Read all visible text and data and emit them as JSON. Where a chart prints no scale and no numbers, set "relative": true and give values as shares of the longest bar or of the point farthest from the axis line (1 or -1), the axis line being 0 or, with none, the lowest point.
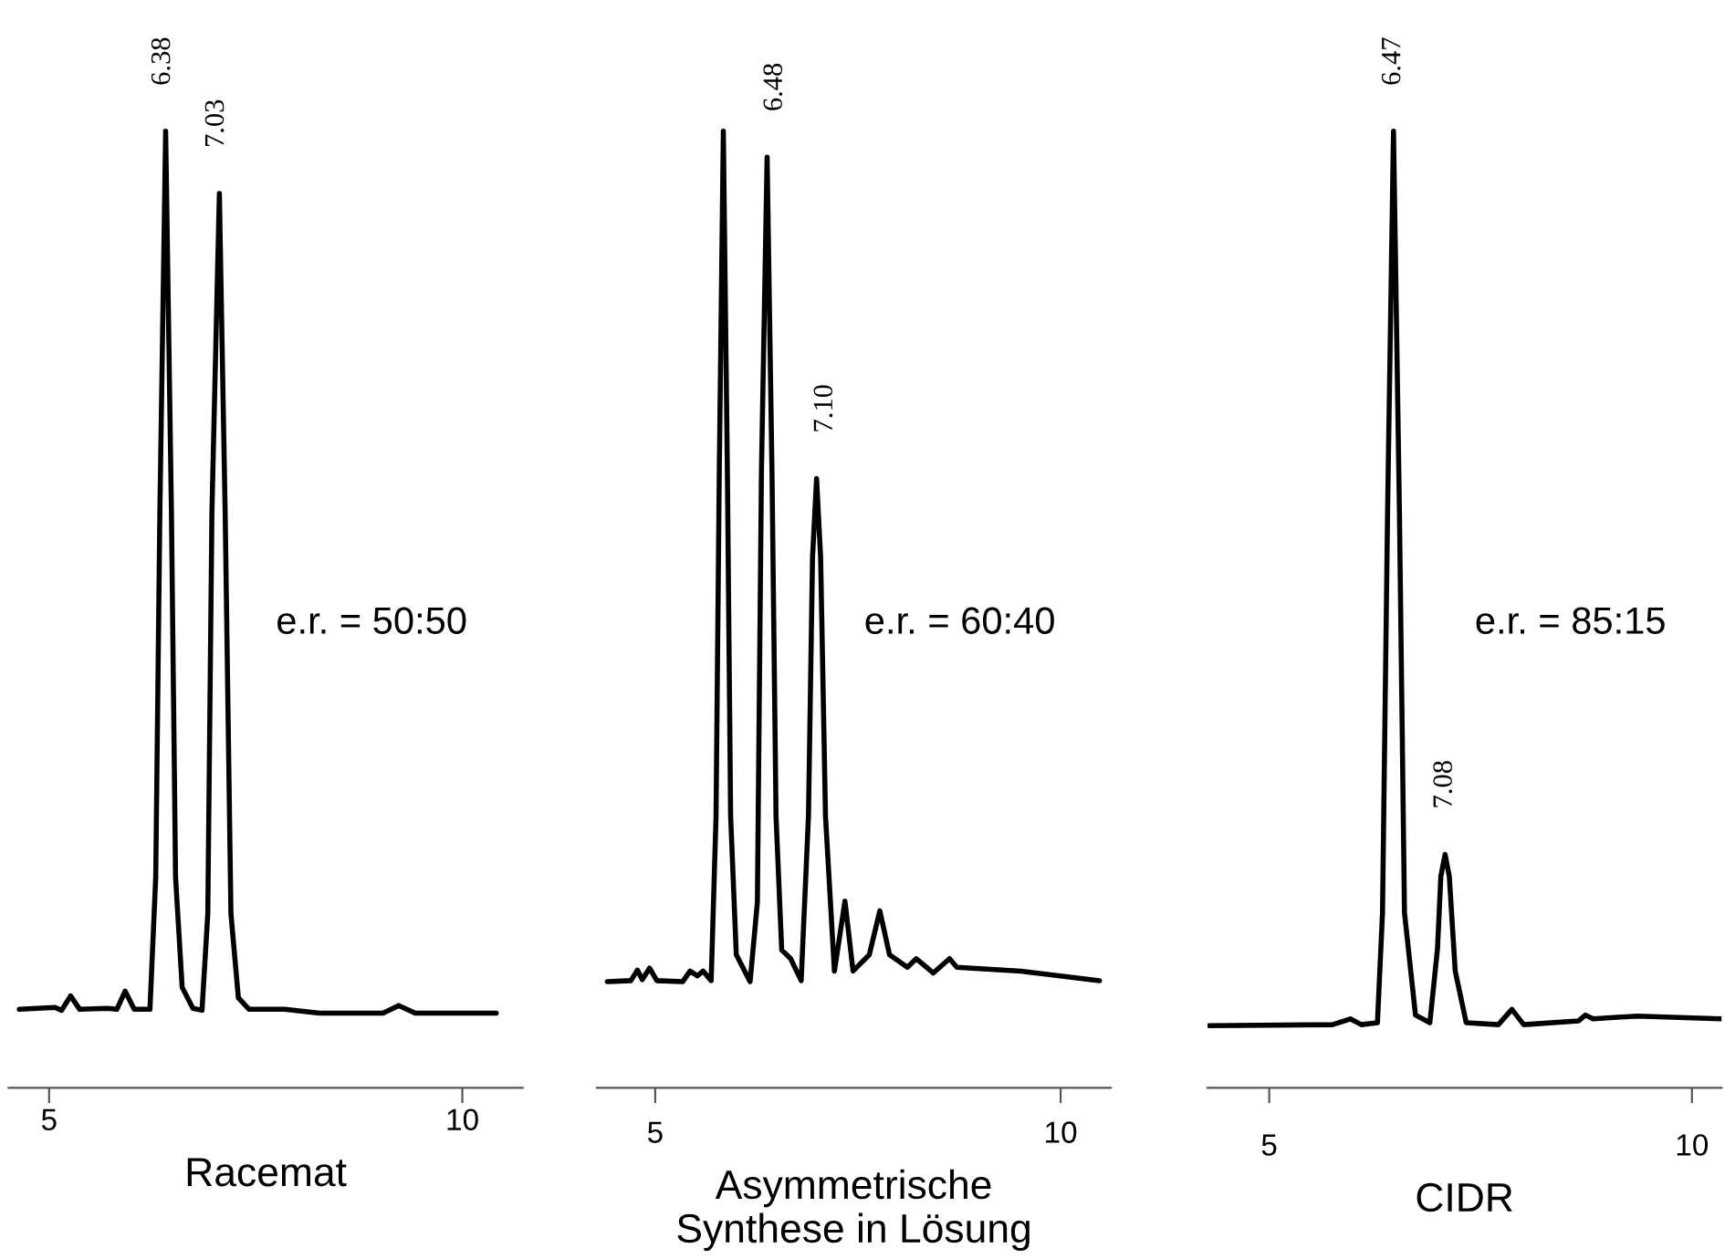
{
  "chart_data": [
    {
      "type": "line",
      "relative": true,
      "xlabel": "Racemat",
      "xlim": [
        4.51,
        10.73
      ],
      "xticks": [
        5,
        10
      ],
      "tick_labels": "x",
      "grid": false,
      "legend": false,
      "marker": "none",
      "line_style": "solid",
      "annotations": [
        {
          "text": "6.38",
          "x": 6.38,
          "y": 1.0
        },
        {
          "text": "7.03",
          "x": 7.03,
          "y": 0.935
        },
        "e.r. = 50:50"
      ],
      "series": [
        {
          "color": "#000000",
          "x": [
            4.64,
            5.07,
            5.15,
            5.26,
            5.37,
            5.71,
            5.82,
            5.92,
            6.03,
            6.22,
            6.29,
            6.34,
            6.41,
            6.48,
            6.53,
            6.61,
            6.74,
            6.85,
            6.92,
            6.97,
            7.06,
            7.13,
            7.2,
            7.29,
            7.42,
            7.85,
            8.27,
            9.04,
            9.23,
            9.43,
            10.41
          ],
          "values": [
            0.082,
            0.084,
            0.081,
            0.096,
            0.082,
            0.083,
            0.082,
            0.101,
            0.082,
            0.082,
            0.22,
            0.602,
            1.0,
            0.602,
            0.22,
            0.105,
            0.083,
            0.081,
            0.182,
            0.602,
            0.935,
            0.602,
            0.182,
            0.094,
            0.082,
            0.082,
            0.078,
            0.078,
            0.086,
            0.078,
            0.078
          ]
        }
      ]
    },
    {
      "type": "line",
      "relative": true,
      "xlabel": "Asymmetrische\nSynthese in Lösung",
      "xlim": [
        4.28,
        10.62
      ],
      "xticks": [
        5,
        10
      ],
      "tick_labels": "x",
      "grid": false,
      "legend": false,
      "marker": "none",
      "line_style": "solid",
      "annotations": [
        {
          "text": "6.48",
          "x": 6.48,
          "y": 0.973
        },
        {
          "text": "7.10",
          "x": 7.1,
          "y": 0.637
        },
        "e.r. = 60:40"
      ],
      "series": [
        {
          "color": "#000000",
          "x": [
            4.41,
            4.7,
            4.78,
            4.84,
            4.93,
            5.02,
            5.34,
            5.43,
            5.52,
            5.59,
            5.69,
            5.75,
            5.79,
            5.84,
            5.89,
            5.93,
            6.0,
            6.17,
            6.26,
            6.31,
            6.38,
            6.44,
            6.49,
            6.56,
            6.67,
            6.8,
            6.89,
            6.94,
            6.99,
            7.04,
            7.1,
            7.21,
            7.34,
            7.44,
            7.64,
            7.77,
            7.89,
            8.11,
            8.22,
            8.43,
            8.63,
            8.72,
            9.51,
            10.48
          ],
          "values": [
            0.111,
            0.112,
            0.123,
            0.113,
            0.125,
            0.112,
            0.111,
            0.122,
            0.117,
            0.122,
            0.112,
            0.284,
            0.644,
            1.0,
            0.644,
            0.284,
            0.139,
            0.111,
            0.194,
            0.644,
            0.973,
            0.644,
            0.284,
            0.144,
            0.135,
            0.112,
            0.284,
            0.554,
            0.637,
            0.554,
            0.284,
            0.122,
            0.195,
            0.122,
            0.139,
            0.185,
            0.139,
            0.126,
            0.135,
            0.12,
            0.135,
            0.126,
            0.122,
            0.112
          ]
        }
      ]
    },
    {
      "type": "line",
      "relative": true,
      "xlabel": "CIDR",
      "xlim": [
        4.27,
        10.35
      ],
      "xticks": [
        5,
        10
      ],
      "tick_labels": "x",
      "grid": false,
      "legend": false,
      "marker": "none",
      "line_style": "solid",
      "annotations": [
        {
          "text": "6.47",
          "x": 6.47,
          "y": 1.0
        },
        {
          "text": "7.08",
          "x": 7.08,
          "y": 0.244
        },
        "e.r. = 85:15"
      ],
      "series": [
        {
          "color": "#000000",
          "x": [
            4.29,
            5.75,
            5.96,
            6.09,
            6.28,
            6.34,
            6.4,
            6.47,
            6.54,
            6.6,
            6.73,
            6.9,
            6.99,
            7.03,
            7.08,
            7.13,
            7.2,
            7.33,
            7.71,
            7.87,
            8.01,
            8.66,
            8.74,
            8.83,
            9.35,
            10.34
          ],
          "values": [
            0.065,
            0.066,
            0.072,
            0.066,
            0.068,
            0.183,
            0.603,
            1.0,
            0.603,
            0.183,
            0.076,
            0.068,
            0.145,
            0.221,
            0.244,
            0.221,
            0.122,
            0.068,
            0.066,
            0.082,
            0.066,
            0.07,
            0.076,
            0.072,
            0.075,
            0.072
          ]
        }
      ]
    }
  ]
}
